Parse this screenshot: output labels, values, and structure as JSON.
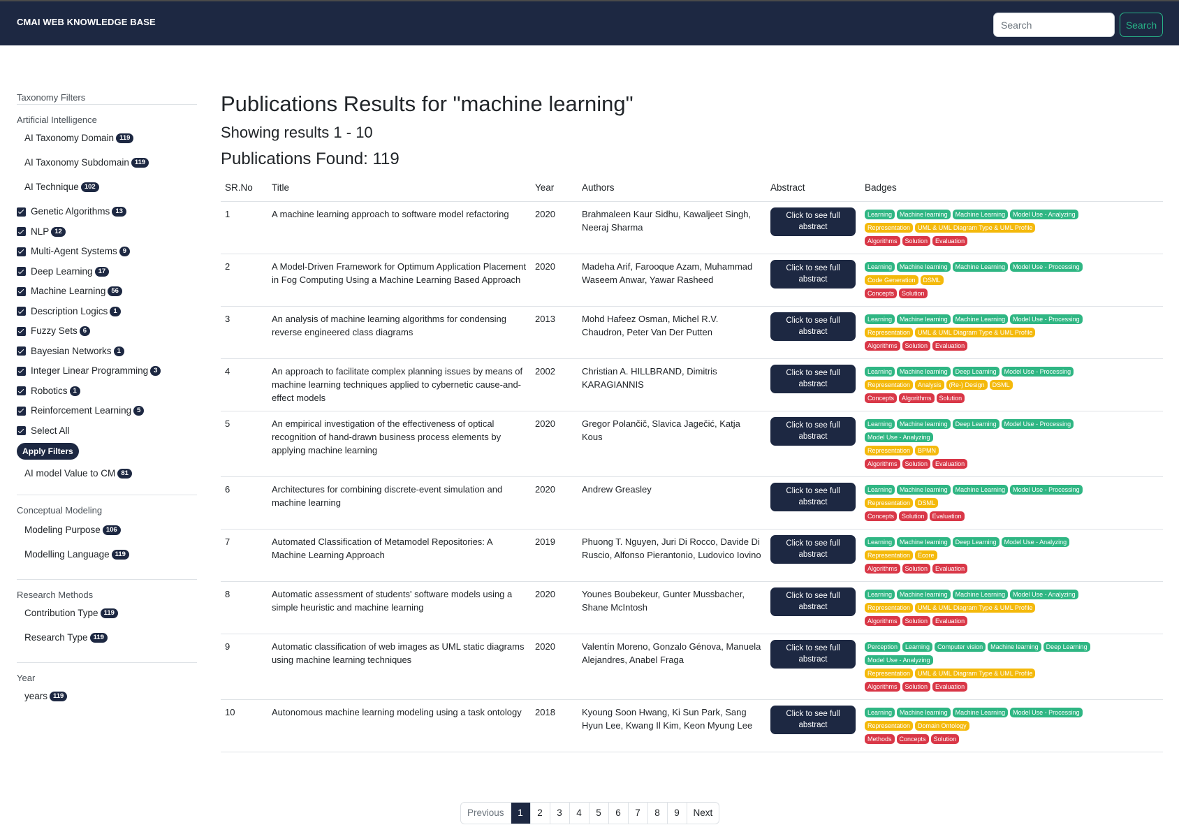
{
  "brand": "CMAI WEB KNOWLEDGE BASE",
  "nav": {
    "search_placeholder": "Search",
    "search_button": "Search"
  },
  "colors": {
    "green": "#2fb683",
    "yellow": "#f4b90b",
    "red": "#d93747",
    "navy": "#1d2842"
  },
  "sidebar": {
    "title": "Taxonomy Filters",
    "ai": {
      "heading": "Artificial Intelligence",
      "items": [
        {
          "label": "AI Taxonomy Domain",
          "count": "119"
        },
        {
          "label": "AI Taxonomy Subdomain",
          "count": "119"
        },
        {
          "label": "AI Technique",
          "count": "102"
        }
      ],
      "checks": [
        {
          "label": "Genetic Algorithms",
          "count": "13"
        },
        {
          "label": "NLP",
          "count": "12"
        },
        {
          "label": "Multi-Agent Systems",
          "count": "9"
        },
        {
          "label": "Deep Learning",
          "count": "17"
        },
        {
          "label": "Machine Learning",
          "count": "56"
        },
        {
          "label": "Description Logics",
          "count": "1"
        },
        {
          "label": "Fuzzy Sets",
          "count": "6"
        },
        {
          "label": "Bayesian Networks",
          "count": "1"
        },
        {
          "label": "Integer Linear Programming",
          "count": "3"
        },
        {
          "label": "Robotics",
          "count": "1"
        },
        {
          "label": "Reinforcement Learning",
          "count": "5"
        }
      ],
      "select_all": "Select All",
      "apply": "Apply Filters",
      "value_item": {
        "label": "AI model Value to CM",
        "count": "81"
      }
    },
    "cm": {
      "heading": "Conceptual Modeling",
      "items": [
        {
          "label": "Modeling Purpose",
          "count": "106"
        },
        {
          "label": "Modelling Language",
          "count": "119"
        }
      ]
    },
    "rm": {
      "heading": "Research Methods",
      "items": [
        {
          "label": "Contribution Type",
          "count": "119"
        },
        {
          "label": "Research Type",
          "count": "119"
        }
      ]
    },
    "year": {
      "heading": "Year",
      "items": [
        {
          "label": "years",
          "count": "119"
        }
      ]
    }
  },
  "main": {
    "title": "Publications Results for \"machine learning\"",
    "showing": "Showing results 1 - 10",
    "found": "Publications Found: 119"
  },
  "table": {
    "headers": [
      "SR.No",
      "Title",
      "Year",
      "Authors",
      "Abstract",
      "Badges"
    ],
    "abstract_label": "Click to see full abstract",
    "rows": [
      {
        "no": "1",
        "title": "A machine learning approach to software model refactoring",
        "year": "2020",
        "authors": "Brahmaleen Kaur Sidhu, Kawaljeet Singh, Neeraj Sharma",
        "badges": [
          [
            [
              "Learning",
              "g"
            ],
            [
              "Machine learning",
              "g"
            ],
            [
              "Machine Learning",
              "g"
            ],
            [
              "Model Use - Analyzing",
              "g"
            ]
          ],
          [
            [
              "Representation",
              "y"
            ],
            [
              "UML & UML Diagram Type & UML Profile",
              "y"
            ]
          ],
          [
            [
              "Algorithms",
              "r"
            ],
            [
              "Solution",
              "r"
            ],
            [
              "Evaluation",
              "r"
            ]
          ]
        ]
      },
      {
        "no": "2",
        "title": "A Model-Driven Framework for Optimum Application Placement in Fog Computing Using a Machine Learning Based Approach",
        "year": "2020",
        "authors": "Madeha Arif, Farooque Azam, Muhammad Waseem Anwar, Yawar Rasheed",
        "badges": [
          [
            [
              "Learning",
              "g"
            ],
            [
              "Machine learning",
              "g"
            ],
            [
              "Machine Learning",
              "g"
            ],
            [
              "Model Use - Processing",
              "g"
            ]
          ],
          [
            [
              "Code Generation",
              "y"
            ],
            [
              "DSML",
              "y"
            ]
          ],
          [
            [
              "Concepts",
              "r"
            ],
            [
              "Solution",
              "r"
            ]
          ]
        ]
      },
      {
        "no": "3",
        "title": "An analysis of machine learning algorithms for condensing reverse engineered class diagrams",
        "year": "2013",
        "authors": "Mohd Hafeez Osman, Michel R.V. Chaudron, Peter Van Der Putten",
        "badges": [
          [
            [
              "Learning",
              "g"
            ],
            [
              "Machine learning",
              "g"
            ],
            [
              "Machine Learning",
              "g"
            ],
            [
              "Model Use - Processing",
              "g"
            ]
          ],
          [
            [
              "Representation",
              "y"
            ],
            [
              "UML & UML Diagram Type & UML Profile",
              "y"
            ]
          ],
          [
            [
              "Algorithms",
              "r"
            ],
            [
              "Solution",
              "r"
            ],
            [
              "Evaluation",
              "r"
            ]
          ]
        ]
      },
      {
        "no": "4",
        "title": "An approach to facilitate complex planning issues by means of machine learning techniques applied to cybernetic cause-and-effect models",
        "year": "2002",
        "authors": "Christian A. HILLBRAND, Dimitris KARAGIANNIS",
        "badges": [
          [
            [
              "Learning",
              "g"
            ],
            [
              "Machine learning",
              "g"
            ],
            [
              "Deep Learning",
              "g"
            ],
            [
              "Model Use - Processing",
              "g"
            ]
          ],
          [
            [
              "Representation",
              "y"
            ],
            [
              "Analysis",
              "y"
            ],
            [
              "(Re-) Design",
              "y"
            ],
            [
              "DSML",
              "y"
            ]
          ],
          [
            [
              "Concepts",
              "r"
            ],
            [
              "Algorithms",
              "r"
            ],
            [
              "Solution",
              "r"
            ]
          ]
        ]
      },
      {
        "no": "5",
        "title": "An empirical investigation of the effectiveness of optical recognition of hand-drawn business process elements by applying machine learning",
        "year": "2020",
        "authors": "Gregor Polančič, Slavica Jagečić, Katja Kous",
        "badges": [
          [
            [
              "Learning",
              "g"
            ],
            [
              "Machine learning",
              "g"
            ],
            [
              "Deep Learning",
              "g"
            ],
            [
              "Model Use - Processing",
              "g"
            ]
          ],
          [
            [
              "Model Use - Analyzing",
              "g"
            ]
          ],
          [
            [
              "Representation",
              "y"
            ],
            [
              "BPMN",
              "y"
            ]
          ],
          [
            [
              "Algorithms",
              "r"
            ],
            [
              "Solution",
              "r"
            ],
            [
              "Evaluation",
              "r"
            ]
          ]
        ]
      },
      {
        "no": "6",
        "title": "Architectures for combining discrete-event simulation and machine learning",
        "year": "2020",
        "authors": "Andrew Greasley",
        "badges": [
          [
            [
              "Learning",
              "g"
            ],
            [
              "Machine learning",
              "g"
            ],
            [
              "Machine Learning",
              "g"
            ],
            [
              "Model Use - Processing",
              "g"
            ]
          ],
          [
            [
              "Representation",
              "y"
            ],
            [
              "DSML",
              "y"
            ]
          ],
          [
            [
              "Concepts",
              "r"
            ],
            [
              "Solution",
              "r"
            ],
            [
              "Evaluation",
              "r"
            ]
          ]
        ]
      },
      {
        "no": "7",
        "title": "Automated Classification of Metamodel Repositories: A Machine Learning Approach",
        "year": "2019",
        "authors": "Phuong T. Nguyen, Juri Di Rocco, Davide Di Ruscio, Alfonso Pierantonio, Ludovico Iovino",
        "badges": [
          [
            [
              "Learning",
              "g"
            ],
            [
              "Machine learning",
              "g"
            ],
            [
              "Deep Learning",
              "g"
            ],
            [
              "Model Use - Analyzing",
              "g"
            ]
          ],
          [
            [
              "Representation",
              "y"
            ],
            [
              "Ecore",
              "y"
            ]
          ],
          [
            [
              "Algorithms",
              "r"
            ],
            [
              "Solution",
              "r"
            ],
            [
              "Evaluation",
              "r"
            ]
          ]
        ]
      },
      {
        "no": "8",
        "title": "Automatic assessment of students' software models using a simple heuristic and machine learning",
        "year": "2020",
        "authors": "Younes Boubekeur, Gunter Mussbacher, Shane McIntosh",
        "badges": [
          [
            [
              "Learning",
              "g"
            ],
            [
              "Machine learning",
              "g"
            ],
            [
              "Machine Learning",
              "g"
            ],
            [
              "Model Use - Analyzing",
              "g"
            ]
          ],
          [
            [
              "Representation",
              "y"
            ],
            [
              "UML & UML Diagram Type & UML Profile",
              "y"
            ]
          ],
          [
            [
              "Algorithms",
              "r"
            ],
            [
              "Solution",
              "r"
            ],
            [
              "Evaluation",
              "r"
            ]
          ]
        ]
      },
      {
        "no": "9",
        "title": "Automatic classification of web images as UML static diagrams using machine learning techniques",
        "year": "2020",
        "authors": "Valentín Moreno, Gonzalo Génova, Manuela Alejandres, Anabel Fraga",
        "badges": [
          [
            [
              "Perception",
              "g"
            ],
            [
              "Learning",
              "g"
            ],
            [
              "Computer vision",
              "g"
            ],
            [
              "Machine learning",
              "g"
            ],
            [
              "Deep Learning",
              "g"
            ]
          ],
          [
            [
              "Model Use - Analyzing",
              "g"
            ]
          ],
          [
            [
              "Representation",
              "y"
            ],
            [
              "UML & UML Diagram Type & UML Profile",
              "y"
            ]
          ],
          [
            [
              "Algorithms",
              "r"
            ],
            [
              "Solution",
              "r"
            ],
            [
              "Evaluation",
              "r"
            ]
          ]
        ]
      },
      {
        "no": "10",
        "title": "Autonomous machine learning modeling using a task ontology",
        "year": "2018",
        "authors": "Kyoung Soon Hwang, Ki Sun Park, Sang Hyun Lee, Kwang Il Kim, Keon Myung Lee",
        "badges": [
          [
            [
              "Learning",
              "g"
            ],
            [
              "Machine learning",
              "g"
            ],
            [
              "Machine Learning",
              "g"
            ],
            [
              "Model Use - Processing",
              "g"
            ]
          ],
          [
            [
              "Representation",
              "y"
            ],
            [
              "Domain Ontology",
              "y"
            ]
          ],
          [
            [
              "Methods",
              "r"
            ],
            [
              "Concepts",
              "r"
            ],
            [
              "Solution",
              "r"
            ]
          ]
        ]
      }
    ]
  },
  "pagination": {
    "previous": "Previous",
    "pages": [
      "1",
      "2",
      "3",
      "4",
      "5",
      "6",
      "7",
      "8",
      "9"
    ],
    "active": "1",
    "next": "Next"
  }
}
